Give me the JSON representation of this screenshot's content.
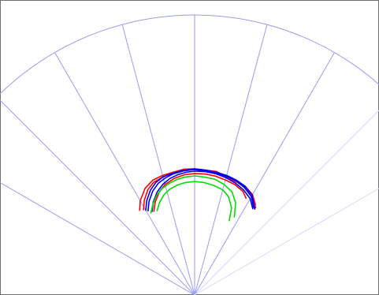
{
  "chart_data": {
    "type": "line",
    "coordinate_system": "polar",
    "angle_unit": "deg",
    "angle_range": [
      -60,
      60
    ],
    "angle_ticks": [
      -60,
      -45,
      -30,
      -15,
      0,
      15,
      30,
      45,
      60
    ],
    "radius_range": [
      0,
      355
    ],
    "outer_radius": 355,
    "grid": true,
    "colors": {
      "grid": "#9a9af2",
      "grid_faint": "#d8d8fb",
      "red": "#ff0000",
      "blue": "#0000ee",
      "green": "#00dd00",
      "frame": "#6f6f6f"
    },
    "series": [
      {
        "color": "red",
        "points": [
          [
            -33.0,
            128
          ],
          [
            -30.0,
            138
          ],
          [
            -25.0,
            149
          ],
          [
            -20.0,
            155
          ],
          [
            -15.0,
            157
          ],
          [
            -10.0,
            158
          ],
          [
            -5.0,
            160
          ],
          [
            0.0,
            160
          ],
          [
            5.0,
            159
          ],
          [
            10.0,
            159
          ],
          [
            15.0,
            156
          ],
          [
            20.0,
            154
          ],
          [
            25.0,
            152
          ],
          [
            30.0,
            147
          ],
          [
            34.0,
            138
          ]
        ]
      },
      {
        "color": "red",
        "points": [
          [
            -31.0,
            126
          ],
          [
            -28.0,
            136
          ],
          [
            -24.0,
            146
          ],
          [
            -20.0,
            152
          ],
          [
            -15.0,
            155
          ],
          [
            -10.0,
            157
          ],
          [
            -5.0,
            159
          ],
          [
            0.0,
            159
          ],
          [
            5.0,
            158
          ],
          [
            10.0,
            158
          ],
          [
            15.0,
            155
          ],
          [
            20.0,
            153
          ],
          [
            25.0,
            151
          ],
          [
            30.0,
            146
          ],
          [
            35.0,
            135
          ]
        ]
      },
      {
        "color": "red",
        "points": [
          [
            -26.0,
            118
          ],
          [
            -23.0,
            128
          ],
          [
            -19.0,
            138
          ],
          [
            -15.0,
            145
          ],
          [
            -10.0,
            150
          ],
          [
            -5.0,
            153
          ],
          [
            0.0,
            154
          ],
          [
            5.0,
            154
          ],
          [
            10.0,
            153
          ],
          [
            15.0,
            151
          ],
          [
            20.0,
            149
          ],
          [
            25.0,
            145
          ],
          [
            28.0,
            139
          ]
        ]
      },
      {
        "color": "blue",
        "points": [
          [
            -30.0,
            124
          ],
          [
            -27.0,
            134
          ],
          [
            -23.0,
            144
          ],
          [
            -19.0,
            151
          ],
          [
            -15.0,
            155
          ],
          [
            -10.0,
            157
          ],
          [
            -5.0,
            159
          ],
          [
            0.0,
            160
          ],
          [
            5.0,
            159
          ],
          [
            10.0,
            158
          ],
          [
            15.0,
            157
          ],
          [
            20.0,
            155
          ],
          [
            25.0,
            152
          ],
          [
            30.0,
            146
          ],
          [
            35.0,
            133
          ]
        ]
      },
      {
        "color": "blue",
        "points": [
          [
            -29.0,
            122
          ],
          [
            -26.0,
            132
          ],
          [
            -22.0,
            142
          ],
          [
            -18.0,
            149
          ],
          [
            -14.0,
            153
          ],
          [
            -10.0,
            156
          ],
          [
            -5.0,
            158
          ],
          [
            0.0,
            159
          ],
          [
            5.0,
            158
          ],
          [
            10.0,
            157
          ],
          [
            15.0,
            156
          ],
          [
            20.0,
            154
          ],
          [
            25.0,
            150
          ],
          [
            30.0,
            144
          ],
          [
            34.0,
            134
          ]
        ]
      },
      {
        "color": "blue",
        "points": [
          [
            -27.0,
            119
          ],
          [
            -24.0,
            129
          ],
          [
            -20.0,
            139
          ],
          [
            -16.0,
            146
          ],
          [
            -12.0,
            151
          ],
          [
            -8.0,
            154
          ],
          [
            -4.0,
            156
          ],
          [
            0.0,
            157
          ],
          [
            5.0,
            157
          ],
          [
            10.0,
            156
          ],
          [
            15.0,
            154
          ],
          [
            20.0,
            151
          ],
          [
            25.0,
            147
          ],
          [
            30.0,
            141
          ],
          [
            34.0,
            132
          ]
        ]
      },
      {
        "color": "green",
        "points": [
          [
            -28.0,
            118
          ],
          [
            -25.0,
            126
          ],
          [
            -21.0,
            135
          ],
          [
            -17.0,
            141
          ],
          [
            -13.0,
            145
          ],
          [
            -9.0,
            148
          ],
          [
            -5.0,
            150
          ],
          [
            0.0,
            151
          ],
          [
            5.0,
            150
          ],
          [
            10.0,
            149
          ],
          [
            15.0,
            145
          ],
          [
            20.0,
            139
          ],
          [
            24.0,
            128
          ],
          [
            27.0,
            111
          ]
        ]
      },
      {
        "color": "green",
        "points": [
          [
            -24.0,
            117
          ],
          [
            -21.0,
            125
          ],
          [
            -17.0,
            133
          ],
          [
            -13.0,
            138
          ],
          [
            -9.0,
            141
          ],
          [
            -5.0,
            143
          ],
          [
            0.0,
            144
          ],
          [
            5.0,
            143
          ],
          [
            10.0,
            141
          ],
          [
            15.0,
            138
          ],
          [
            19.0,
            132
          ],
          [
            23.0,
            120
          ],
          [
            25.0,
            104
          ]
        ]
      }
    ]
  }
}
